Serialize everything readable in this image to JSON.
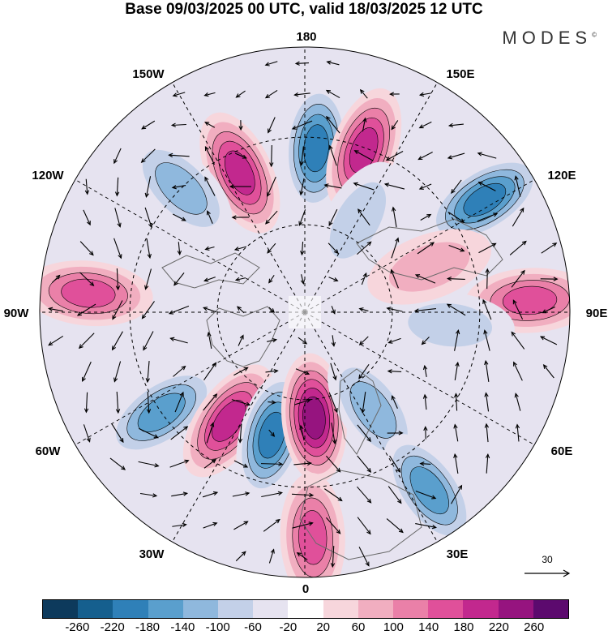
{
  "title": "Base 09/03/2025 00 UTC, valid 18/03/2025 12 UTC",
  "brand": "MODES",
  "brand_mark": "©",
  "longitude_labels": {
    "top": "180",
    "top_left": "150W",
    "top_right": "150E",
    "upper_left": "120W",
    "upper_right": "120E",
    "left": "90W",
    "right": "90E",
    "lower_left": "60W",
    "lower_right": "60E",
    "bottom_left": "30W",
    "bottom_right": "30E",
    "bottom": "0"
  },
  "vector_reference": {
    "value": "30"
  },
  "colorbar": {
    "colors": [
      "#0d3a5c",
      "#155f8e",
      "#2f80b8",
      "#5a9fcd",
      "#8fb8dd",
      "#c3d0e8",
      "#e6e3f0",
      "#ffffff",
      "#f7d6dc",
      "#f1aec0",
      "#ea80a8",
      "#e0509a",
      "#c2288e",
      "#96147f",
      "#5c0a6e"
    ],
    "tick_labels": [
      "-260",
      "-220",
      "-180",
      "-140",
      "-100",
      "-60",
      "-20",
      "20",
      "60",
      "100",
      "140",
      "180",
      "220",
      "260"
    ]
  },
  "anomaly_centers": [
    {
      "lon": 176,
      "lat_r": 0.62,
      "value": -200
    },
    {
      "lon": 160,
      "lat_r": 0.65,
      "value": 200
    },
    {
      "lon": 122,
      "lat_r": 0.8,
      "value": -180
    },
    {
      "lon": 150,
      "lat_r": 0.4,
      "value": -60
    },
    {
      "lon": -155,
      "lat_r": 0.58,
      "value": 180
    },
    {
      "lon": -135,
      "lat_r": 0.66,
      "value": -100
    },
    {
      "lon": -95,
      "lat_r": 0.82,
      "value": 140
    },
    {
      "lon": -75,
      "lat_r": 0.52,
      "value": -40
    },
    {
      "lon": -55,
      "lat_r": 0.66,
      "value": -160
    },
    {
      "lon": -35,
      "lat_r": 0.5,
      "value": 200
    },
    {
      "lon": -15,
      "lat_r": 0.48,
      "value": -200
    },
    {
      "lon": 5,
      "lat_r": 0.4,
      "value": 240
    },
    {
      "lon": 35,
      "lat_r": 0.45,
      "value": -120
    },
    {
      "lon": 35,
      "lat_r": 0.82,
      "value": -160
    },
    {
      "lon": 2,
      "lat_r": 0.85,
      "value": 160
    },
    {
      "lon": 93,
      "lat_r": 0.85,
      "value": 160
    },
    {
      "lon": 85,
      "lat_r": 0.55,
      "value": -60
    },
    {
      "lon": 110,
      "lat_r": 0.5,
      "value": 60
    }
  ]
}
